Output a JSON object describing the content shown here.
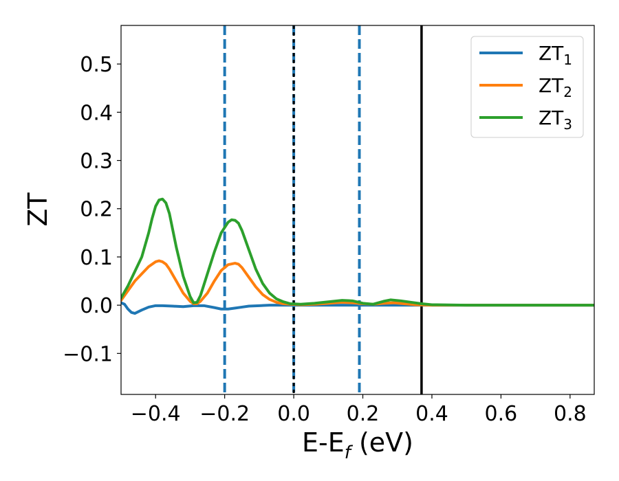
{
  "chart_data": {
    "type": "line",
    "xlabel": {
      "main": "E-E",
      "sub": "f",
      "tail": " (eV)"
    },
    "ylabel": "ZT",
    "xlim": [
      -0.5,
      0.87
    ],
    "ylim": [
      -0.185,
      0.58
    ],
    "xticks": [
      -0.4,
      -0.2,
      0.0,
      0.2,
      0.4,
      0.6,
      0.8
    ],
    "xtick_labels": [
      "−0.4",
      "−0.2",
      "0.0",
      "0.2",
      "0.4",
      "0.6",
      "0.8"
    ],
    "yticks": [
      -0.1,
      0.0,
      0.1,
      0.2,
      0.3,
      0.4,
      0.5
    ],
    "ytick_labels": [
      "−0.1",
      "0.0",
      "0.1",
      "0.2",
      "0.3",
      "0.4",
      "0.5"
    ],
    "grid": false,
    "legend_position": "top-right",
    "vlines": [
      {
        "x": -0.2,
        "style": "dashed",
        "color": "#1f77b4"
      },
      {
        "x": 0.0,
        "style": "dashed",
        "color": "#1f77b4"
      },
      {
        "x": 0.0,
        "style": "dashed-black",
        "color": "#000000"
      },
      {
        "x": 0.19,
        "style": "dashed",
        "color": "#1f77b4"
      },
      {
        "x": 0.37,
        "style": "solid",
        "color": "#000000"
      }
    ],
    "series": [
      {
        "name": "ZT",
        "sub": "1",
        "color": "#1f77b4",
        "x": [
          -0.5,
          -0.49,
          -0.48,
          -0.47,
          -0.46,
          -0.44,
          -0.42,
          -0.4,
          -0.38,
          -0.35,
          -0.32,
          -0.29,
          -0.26,
          -0.23,
          -0.21,
          -0.19,
          -0.17,
          -0.15,
          -0.13,
          -0.1,
          -0.07,
          -0.04,
          -0.01,
          0.0,
          0.05,
          0.1,
          0.2,
          0.3,
          0.4,
          0.5,
          0.6,
          0.7,
          0.8,
          0.87
        ],
        "y": [
          0.005,
          0.002,
          -0.008,
          -0.015,
          -0.017,
          -0.01,
          -0.004,
          -0.001,
          -0.001,
          -0.002,
          -0.003,
          -0.001,
          -0.001,
          -0.005,
          -0.008,
          -0.008,
          -0.006,
          -0.004,
          -0.002,
          -0.001,
          0.0,
          0.0,
          0.0,
          0.0,
          0.0,
          0.0,
          0.0,
          0.0,
          0.0,
          0.0,
          0.0,
          0.0,
          0.0,
          0.0
        ]
      },
      {
        "name": "ZT",
        "sub": "2",
        "color": "#ff7f0e",
        "x": [
          -0.5,
          -0.48,
          -0.46,
          -0.44,
          -0.42,
          -0.4,
          -0.39,
          -0.38,
          -0.37,
          -0.36,
          -0.34,
          -0.32,
          -0.3,
          -0.29,
          -0.28,
          -0.27,
          -0.25,
          -0.23,
          -0.21,
          -0.19,
          -0.17,
          -0.16,
          -0.15,
          -0.13,
          -0.11,
          -0.09,
          -0.07,
          -0.05,
          -0.03,
          -0.01,
          0.02,
          0.06,
          0.1,
          0.14,
          0.17,
          0.2,
          0.23,
          0.26,
          0.29,
          0.32,
          0.35,
          0.4,
          0.5,
          0.6,
          0.7,
          0.8,
          0.87
        ],
        "y": [
          0.01,
          0.03,
          0.05,
          0.065,
          0.08,
          0.09,
          0.092,
          0.09,
          0.085,
          0.075,
          0.05,
          0.025,
          0.008,
          0.003,
          0.003,
          0.008,
          0.025,
          0.05,
          0.072,
          0.084,
          0.087,
          0.085,
          0.078,
          0.058,
          0.038,
          0.022,
          0.012,
          0.006,
          0.003,
          0.002,
          0.001,
          0.002,
          0.004,
          0.006,
          0.005,
          0.003,
          0.002,
          0.004,
          0.005,
          0.003,
          0.001,
          0.0,
          0.0,
          0.0,
          0.0,
          0.0,
          0.0
        ]
      },
      {
        "name": "ZT",
        "sub": "3",
        "color": "#2ca02c",
        "x": [
          -0.5,
          -0.48,
          -0.46,
          -0.44,
          -0.42,
          -0.41,
          -0.4,
          -0.39,
          -0.38,
          -0.37,
          -0.36,
          -0.35,
          -0.34,
          -0.32,
          -0.3,
          -0.29,
          -0.28,
          -0.27,
          -0.25,
          -0.23,
          -0.21,
          -0.19,
          -0.18,
          -0.17,
          -0.16,
          -0.15,
          -0.13,
          -0.11,
          -0.09,
          -0.07,
          -0.05,
          -0.03,
          -0.01,
          0.02,
          0.06,
          0.1,
          0.14,
          0.17,
          0.2,
          0.23,
          0.26,
          0.28,
          0.31,
          0.34,
          0.37,
          0.4,
          0.5,
          0.6,
          0.7,
          0.8,
          0.87
        ],
        "y": [
          0.015,
          0.04,
          0.07,
          0.1,
          0.15,
          0.18,
          0.205,
          0.218,
          0.22,
          0.212,
          0.19,
          0.155,
          0.12,
          0.06,
          0.018,
          0.005,
          0.006,
          0.02,
          0.065,
          0.11,
          0.15,
          0.172,
          0.177,
          0.176,
          0.17,
          0.155,
          0.115,
          0.075,
          0.045,
          0.025,
          0.013,
          0.007,
          0.003,
          0.002,
          0.004,
          0.007,
          0.01,
          0.009,
          0.004,
          0.002,
          0.008,
          0.011,
          0.009,
          0.006,
          0.003,
          0.001,
          0.0,
          0.0,
          0.0,
          0.0,
          0.0
        ]
      }
    ]
  }
}
